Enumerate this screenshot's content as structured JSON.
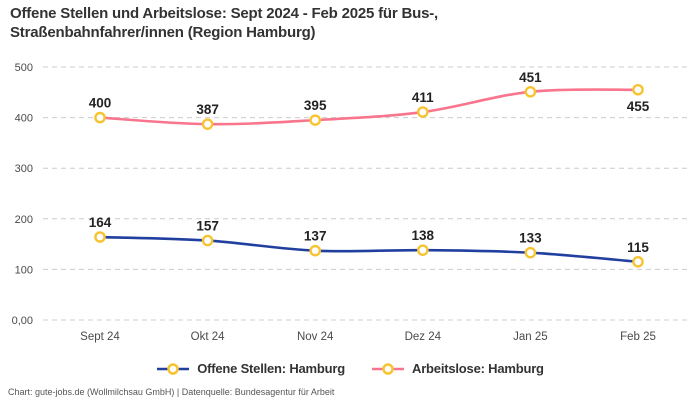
{
  "title": "Offene Stellen und Arbeitslose: Sept 2024 - Feb 2025 für Bus-, Straßenbahnfahrer/innen (Region Hamburg)",
  "footer": "Chart: gute-jobs.de (Wollmilchsau GmbH) | Datenquelle: Bundesagentur für Arbeit",
  "colors": {
    "marker_ring": "#f8c331",
    "marker_fill": "#ffffff",
    "grid": "#cccccc",
    "title_text": "#333333",
    "data_label_text": "#222222",
    "axis_text": "#4a4a4a",
    "footer_text": "#555555",
    "background": "#ffffff"
  },
  "chart_data": {
    "type": "line",
    "categories": [
      "Sept 24",
      "Okt 24",
      "Nov 24",
      "Dez 24",
      "Jan 25",
      "Feb 25"
    ],
    "series": [
      {
        "name": "Offene Stellen: Hamburg",
        "color": "#213f9e",
        "values": [
          164,
          157,
          137,
          138,
          133,
          115
        ],
        "label_positions": [
          "above",
          "above",
          "above",
          "above",
          "above",
          "above"
        ]
      },
      {
        "name": "Arbeitslose: Hamburg",
        "color": "#f8758d",
        "values": [
          400,
          387,
          395,
          411,
          451,
          455
        ],
        "label_positions": [
          "above",
          "above",
          "above",
          "above",
          "above",
          "below"
        ]
      }
    ],
    "ylim": [
      0,
      500
    ],
    "ytick_values": [
      0,
      100,
      200,
      300,
      400,
      500
    ],
    "ytick_labels": [
      "0,00",
      "100",
      "200",
      "300",
      "400",
      "500"
    ],
    "grid": "dashed-horizontal",
    "legend_position": "bottom-center",
    "marker": "circle-yellow-ring",
    "title": "Offene Stellen und Arbeitslose: Sept 2024 - Feb 2025 für Bus-, Straßenbahnfahrer/innen (Region Hamburg)",
    "xlabel": "",
    "ylabel": ""
  }
}
